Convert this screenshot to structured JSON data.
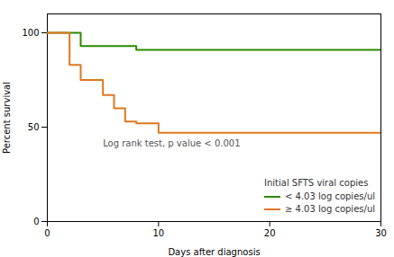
{
  "chart_data": {
    "type": "line",
    "xlabel": "Days after diagnosis",
    "ylabel": "Percent survival",
    "xlim": [
      0,
      30
    ],
    "ylim": [
      0,
      110
    ],
    "xticks": [
      0,
      10,
      20,
      30
    ],
    "yticks": [
      0,
      50,
      100
    ],
    "annotation": {
      "text": "Log rank test, p value < 0.001",
      "x": 5.0,
      "y": 40
    },
    "legend_title": "Initial SFTS viral copies",
    "legend": "lower right",
    "series": [
      {
        "name": "< 4.03 log copies/ul",
        "color": "#2b8a00",
        "x": [
          0,
          3,
          3,
          8,
          8,
          30
        ],
        "values": [
          100,
          100,
          93,
          93,
          91,
          91
        ]
      },
      {
        "name": "≥ 4.03 log copies/ul",
        "color": "#e07820",
        "x": [
          0,
          2,
          2,
          3,
          3,
          5,
          5,
          6,
          6,
          7,
          7,
          8,
          8,
          10,
          10,
          19,
          19,
          30
        ],
        "values": [
          100,
          100,
          83,
          83,
          75,
          75,
          67,
          67,
          60,
          60,
          53,
          53,
          52,
          52,
          47,
          47,
          47,
          47
        ]
      }
    ]
  }
}
